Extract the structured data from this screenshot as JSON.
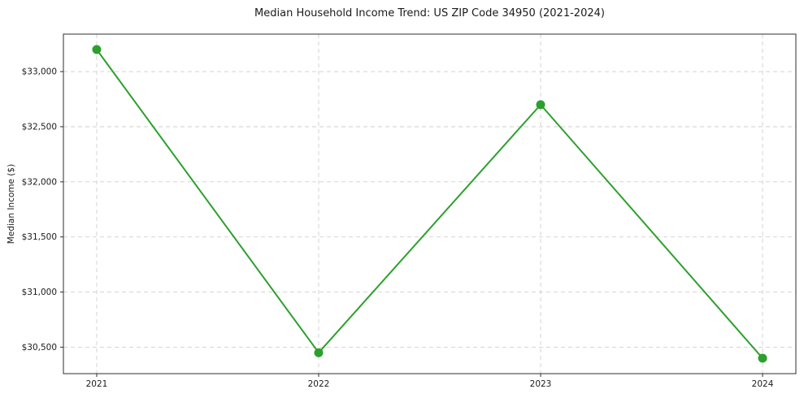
{
  "page": {
    "background_color": "#ffffff"
  },
  "chart_data": {
    "type": "line",
    "title": "Median Household Income Trend: US ZIP Code 34950 (2021-2024)",
    "xlabel": "",
    "ylabel": "Median Income ($)",
    "x": [
      2021,
      2022,
      2023,
      2024
    ],
    "values": [
      33200,
      30450,
      32700,
      30400
    ],
    "xticks": [
      2021,
      2022,
      2023,
      2024
    ],
    "xtick_labels": [
      "2021",
      "2022",
      "2023",
      "2024"
    ],
    "yticks": [
      30500,
      31000,
      31500,
      32000,
      32500,
      33000
    ],
    "ytick_labels": [
      "$30,500",
      "$31,000",
      "$31,500",
      "$32,000",
      "$32,500",
      "$33,000"
    ],
    "xlim": [
      2020.85,
      2024.15
    ],
    "ylim": [
      30260,
      33340
    ],
    "grid": true,
    "grid_style": "dashed",
    "legend": false,
    "line_color": "#2ca02c",
    "marker_color": "#2ca02c",
    "grid_color": "#cfcfcf",
    "spine_color": "#2e2e2e",
    "tick_label_color": "#1a1a1a"
  }
}
